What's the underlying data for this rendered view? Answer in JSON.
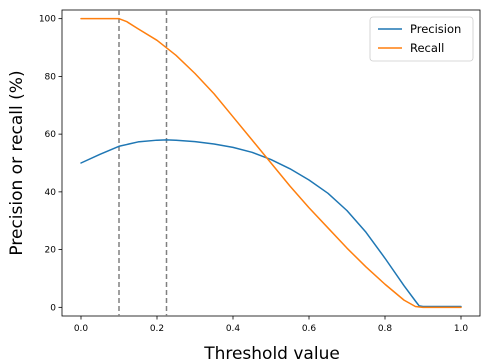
{
  "chart_data": {
    "type": "line",
    "title": "",
    "xlabel": "Threshold value",
    "ylabel": "Precision or recall (%)",
    "xlim": [
      -0.05,
      1.05
    ],
    "ylim": [
      -3,
      103
    ],
    "xticks": [
      0.0,
      0.2,
      0.4,
      0.6,
      0.8,
      1.0
    ],
    "xtick_labels": [
      "0.0",
      "0.2",
      "0.4",
      "0.6",
      "0.8",
      "1.0"
    ],
    "yticks": [
      0,
      20,
      40,
      60,
      80,
      100
    ],
    "ytick_labels": [
      "0",
      "20",
      "40",
      "60",
      "80",
      "100"
    ],
    "grid": false,
    "legend": "top-right",
    "vlines": [
      0.1,
      0.225
    ],
    "series": [
      {
        "name": "Precision",
        "color": "#1f77b4",
        "x": [
          0.0,
          0.05,
          0.1,
          0.15,
          0.2,
          0.225,
          0.25,
          0.3,
          0.35,
          0.4,
          0.45,
          0.5,
          0.55,
          0.6,
          0.65,
          0.7,
          0.75,
          0.8,
          0.85,
          0.88,
          0.89,
          0.9,
          1.0
        ],
        "values": [
          50.0,
          53.0,
          55.8,
          57.3,
          57.9,
          58.0,
          57.9,
          57.4,
          56.6,
          55.4,
          53.7,
          51.2,
          48.0,
          44.1,
          39.5,
          33.5,
          26.0,
          17.0,
          7.5,
          2.2,
          0.5,
          0.3,
          0.3
        ]
      },
      {
        "name": "Recall",
        "color": "#ff7f0e",
        "x": [
          0.0,
          0.05,
          0.1,
          0.12,
          0.15,
          0.2,
          0.25,
          0.3,
          0.35,
          0.4,
          0.45,
          0.5,
          0.55,
          0.6,
          0.65,
          0.7,
          0.75,
          0.8,
          0.85,
          0.88,
          0.9,
          1.0
        ],
        "values": [
          100.0,
          100.0,
          100.0,
          99.0,
          96.5,
          92.5,
          87.3,
          81.0,
          74.0,
          66.0,
          58.0,
          50.0,
          42.0,
          34.5,
          27.5,
          20.5,
          14.0,
          8.0,
          2.5,
          0.3,
          0.0,
          0.0
        ]
      }
    ]
  }
}
